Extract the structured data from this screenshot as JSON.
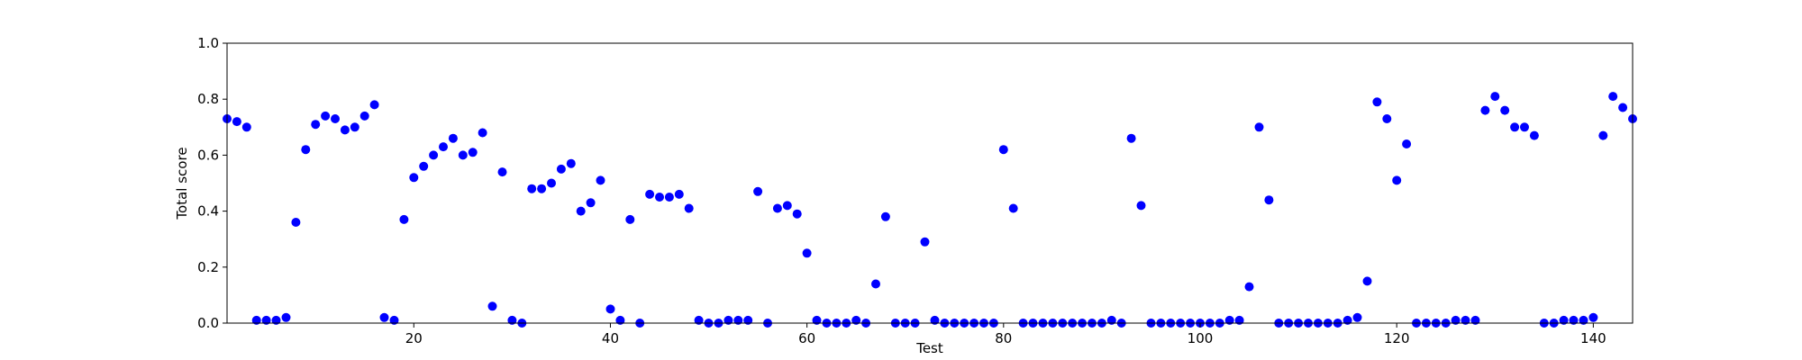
{
  "chart_data": {
    "type": "scatter",
    "title": "",
    "xlabel": "Test",
    "ylabel": "Total score",
    "xlim": [
      1,
      144
    ],
    "ylim": [
      0.0,
      1.0
    ],
    "grid": false,
    "marker_color": "#0000ff",
    "x_ticks": [
      20,
      40,
      60,
      80,
      100,
      120,
      140
    ],
    "y_ticks": [
      0.0,
      0.2,
      0.4,
      0.6,
      0.8,
      1.0
    ],
    "x_tick_labels": [
      "20",
      "40",
      "60",
      "80",
      "100",
      "120",
      "140"
    ],
    "y_tick_labels": [
      "0.0",
      "0.2",
      "0.4",
      "0.6",
      "0.8",
      "1.0"
    ],
    "points": [
      [
        1,
        0.73
      ],
      [
        2,
        0.72
      ],
      [
        3,
        0.7
      ],
      [
        4,
        0.01
      ],
      [
        5,
        0.01
      ],
      [
        6,
        0.01
      ],
      [
        7,
        0.02
      ],
      [
        8,
        0.36
      ],
      [
        9,
        0.62
      ],
      [
        10,
        0.71
      ],
      [
        11,
        0.74
      ],
      [
        12,
        0.73
      ],
      [
        13,
        0.69
      ],
      [
        14,
        0.7
      ],
      [
        15,
        0.74
      ],
      [
        16,
        0.78
      ],
      [
        17,
        0.02
      ],
      [
        18,
        0.01
      ],
      [
        19,
        0.37
      ],
      [
        20,
        0.52
      ],
      [
        21,
        0.56
      ],
      [
        22,
        0.6
      ],
      [
        23,
        0.63
      ],
      [
        24,
        0.66
      ],
      [
        25,
        0.6
      ],
      [
        26,
        0.61
      ],
      [
        27,
        0.68
      ],
      [
        28,
        0.06
      ],
      [
        29,
        0.54
      ],
      [
        30,
        0.01
      ],
      [
        31,
        0.0
      ],
      [
        32,
        0.48
      ],
      [
        33,
        0.48
      ],
      [
        34,
        0.5
      ],
      [
        35,
        0.55
      ],
      [
        36,
        0.57
      ],
      [
        37,
        0.4
      ],
      [
        38,
        0.43
      ],
      [
        39,
        0.51
      ],
      [
        40,
        0.05
      ],
      [
        41,
        0.01
      ],
      [
        42,
        0.37
      ],
      [
        43,
        0.0
      ],
      [
        44,
        0.46
      ],
      [
        45,
        0.45
      ],
      [
        46,
        0.45
      ],
      [
        47,
        0.46
      ],
      [
        48,
        0.41
      ],
      [
        49,
        0.01
      ],
      [
        50,
        0.0
      ],
      [
        51,
        0.0
      ],
      [
        52,
        0.01
      ],
      [
        53,
        0.01
      ],
      [
        54,
        0.01
      ],
      [
        55,
        0.47
      ],
      [
        56,
        0.0
      ],
      [
        57,
        0.41
      ],
      [
        58,
        0.42
      ],
      [
        59,
        0.39
      ],
      [
        60,
        0.25
      ],
      [
        61,
        0.01
      ],
      [
        62,
        0.0
      ],
      [
        63,
        0.0
      ],
      [
        64,
        0.0
      ],
      [
        65,
        0.01
      ],
      [
        66,
        0.0
      ],
      [
        67,
        0.14
      ],
      [
        68,
        0.38
      ],
      [
        69,
        0.0
      ],
      [
        70,
        0.0
      ],
      [
        71,
        0.0
      ],
      [
        72,
        0.29
      ],
      [
        73,
        0.01
      ],
      [
        74,
        0.0
      ],
      [
        75,
        0.0
      ],
      [
        76,
        0.0
      ],
      [
        77,
        0.0
      ],
      [
        78,
        0.0
      ],
      [
        79,
        0.0
      ],
      [
        80,
        0.62
      ],
      [
        81,
        0.41
      ],
      [
        82,
        0.0
      ],
      [
        83,
        0.0
      ],
      [
        84,
        0.0
      ],
      [
        85,
        0.0
      ],
      [
        86,
        0.0
      ],
      [
        87,
        0.0
      ],
      [
        88,
        0.0
      ],
      [
        89,
        0.0
      ],
      [
        90,
        0.0
      ],
      [
        91,
        0.01
      ],
      [
        92,
        0.0
      ],
      [
        93,
        0.66
      ],
      [
        94,
        0.42
      ],
      [
        95,
        0.0
      ],
      [
        96,
        0.0
      ],
      [
        97,
        0.0
      ],
      [
        98,
        0.0
      ],
      [
        99,
        0.0
      ],
      [
        100,
        0.0
      ],
      [
        101,
        0.0
      ],
      [
        102,
        0.0
      ],
      [
        103,
        0.01
      ],
      [
        104,
        0.01
      ],
      [
        105,
        0.13
      ],
      [
        106,
        0.7
      ],
      [
        107,
        0.44
      ],
      [
        108,
        0.0
      ],
      [
        109,
        0.0
      ],
      [
        110,
        0.0
      ],
      [
        111,
        0.0
      ],
      [
        112,
        0.0
      ],
      [
        113,
        0.0
      ],
      [
        114,
        0.0
      ],
      [
        115,
        0.01
      ],
      [
        116,
        0.02
      ],
      [
        117,
        0.15
      ],
      [
        118,
        0.79
      ],
      [
        119,
        0.73
      ],
      [
        120,
        0.51
      ],
      [
        121,
        0.64
      ],
      [
        122,
        0.0
      ],
      [
        123,
        0.0
      ],
      [
        124,
        0.0
      ],
      [
        125,
        0.0
      ],
      [
        126,
        0.01
      ],
      [
        127,
        0.01
      ],
      [
        128,
        0.01
      ],
      [
        129,
        0.76
      ],
      [
        130,
        0.81
      ],
      [
        131,
        0.76
      ],
      [
        132,
        0.7
      ],
      [
        133,
        0.7
      ],
      [
        134,
        0.67
      ],
      [
        135,
        0.0
      ],
      [
        136,
        0.0
      ],
      [
        137,
        0.01
      ],
      [
        138,
        0.01
      ],
      [
        139,
        0.01
      ],
      [
        140,
        0.02
      ],
      [
        141,
        0.67
      ],
      [
        142,
        0.81
      ],
      [
        143,
        0.77
      ],
      [
        144,
        0.73
      ]
    ]
  }
}
